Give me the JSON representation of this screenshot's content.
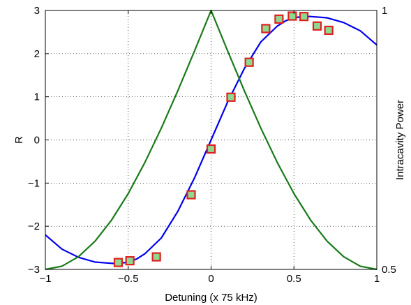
{
  "chart_data": {
    "type": "line",
    "title": "",
    "xlabel": "Detuning (x 75 kHz)",
    "ylabel": "R",
    "ylabel_right": "Intracavity Power",
    "xlim": [
      -1,
      1
    ],
    "ylim": [
      -3,
      3
    ],
    "ylim_right": [
      0.5,
      1
    ],
    "grid": true,
    "x_ticks": [
      "−1",
      "−0.5",
      "0",
      "0.5",
      "1"
    ],
    "y_ticks": [
      "3",
      "2",
      "1",
      "0",
      "−1",
      "−2",
      "−3"
    ],
    "y_right_ticks": [
      "1",
      "0.5"
    ],
    "series": [
      {
        "kind": "line",
        "axis": "left",
        "color": "#0000ee",
        "x": [
          -1.0,
          -0.9,
          -0.8,
          -0.7,
          -0.6,
          -0.55,
          -0.5,
          -0.45,
          -0.4,
          -0.3,
          -0.2,
          -0.1,
          0.0,
          0.1,
          0.2,
          0.3,
          0.4,
          0.45,
          0.5,
          0.55,
          0.6,
          0.7,
          0.8,
          0.9,
          1.0
        ],
        "y": [
          -2.2,
          -2.53,
          -2.72,
          -2.83,
          -2.86,
          -2.86,
          -2.83,
          -2.76,
          -2.64,
          -2.27,
          -1.65,
          -0.88,
          0.0,
          0.88,
          1.65,
          2.27,
          2.64,
          2.76,
          2.83,
          2.86,
          2.86,
          2.83,
          2.72,
          2.53,
          2.2
        ]
      },
      {
        "kind": "line",
        "axis": "right",
        "color": "#1a7a1a",
        "x": [
          -1.0,
          -0.9,
          -0.8,
          -0.7,
          -0.6,
          -0.5,
          -0.4,
          -0.3,
          -0.2,
          -0.1,
          0.0,
          0.1,
          0.2,
          0.3,
          0.4,
          0.5,
          0.6,
          0.7,
          0.8,
          0.9,
          1.0
        ],
        "y": [
          0.5,
          0.5062,
          0.5245,
          0.5545,
          0.5955,
          0.6464,
          0.7061,
          0.773,
          0.8455,
          0.9217,
          1.0,
          0.9217,
          0.8455,
          0.773,
          0.7061,
          0.6464,
          0.5955,
          0.5545,
          0.5245,
          0.5062,
          0.5
        ]
      },
      {
        "kind": "scatter",
        "axis": "left",
        "marker": "square",
        "edge_color": "#e02020",
        "face_color": "#8fd98f",
        "x": [
          -0.56,
          -0.49,
          -0.33,
          -0.12,
          0.0,
          0.12,
          0.23,
          0.33,
          0.41,
          0.49,
          0.56,
          0.64,
          0.71
        ],
        "y": [
          -2.84,
          -2.8,
          -2.71,
          -1.27,
          -0.21,
          0.99,
          1.8,
          2.58,
          2.8,
          2.87,
          2.86,
          2.64,
          2.54
        ]
      }
    ]
  }
}
